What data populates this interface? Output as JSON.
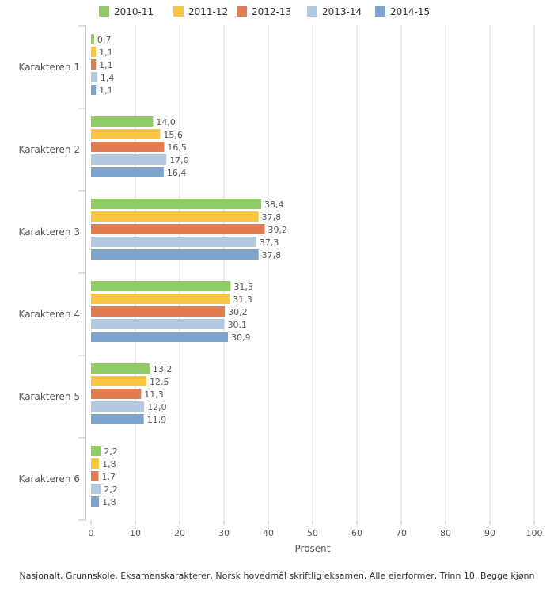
{
  "chart_data": {
    "type": "bar",
    "orientation": "horizontal",
    "categories": [
      "Karakteren 1",
      "Karakteren 2",
      "Karakteren 3",
      "Karakteren 4",
      "Karakteren 5",
      "Karakteren 6"
    ],
    "series": [
      {
        "name": "2010-11",
        "color": "#8fcc66",
        "values": [
          0.7,
          14.0,
          38.4,
          31.5,
          13.2,
          2.2
        ],
        "labels": [
          "0,7",
          "14,0",
          "38,4",
          "31,5",
          "13,2",
          "2,2"
        ]
      },
      {
        "name": "2011-12",
        "color": "#f9c642",
        "values": [
          1.1,
          15.6,
          37.8,
          31.3,
          12.5,
          1.8
        ],
        "labels": [
          "1,1",
          "15,6",
          "37,8",
          "31,3",
          "12,5",
          "1,8"
        ]
      },
      {
        "name": "2012-13",
        "color": "#e07d52",
        "values": [
          1.1,
          16.5,
          39.2,
          30.2,
          11.3,
          1.7
        ],
        "labels": [
          "1,1",
          "16,5",
          "39,2",
          "30,2",
          "11,3",
          "1,7"
        ]
      },
      {
        "name": "2013-14",
        "color": "#b3c9e0",
        "values": [
          1.4,
          17.0,
          37.3,
          30.1,
          12.0,
          2.2
        ],
        "labels": [
          "1,4",
          "17,0",
          "37,3",
          "30,1",
          "12,0",
          "2,2"
        ]
      },
      {
        "name": "2014-15",
        "color": "#7ea4cc",
        "values": [
          1.1,
          16.4,
          37.8,
          30.9,
          11.9,
          1.8
        ],
        "labels": [
          "1,1",
          "16,4",
          "37,8",
          "30,9",
          "11,9",
          "1,8"
        ]
      }
    ],
    "xlabel": "Prosent",
    "ylabel": "",
    "xlim": [
      0,
      100
    ],
    "ticks": [
      0,
      10,
      20,
      30,
      40,
      50,
      60,
      70,
      80,
      90,
      100
    ],
    "grid": true,
    "legend": "top",
    "footnote": "Nasjonalt, Grunnskole, Eksamenskarakterer, Norsk hovedmål skriftlig eksamen, Alle eierformer, Trinn 10, Begge kjønn"
  }
}
